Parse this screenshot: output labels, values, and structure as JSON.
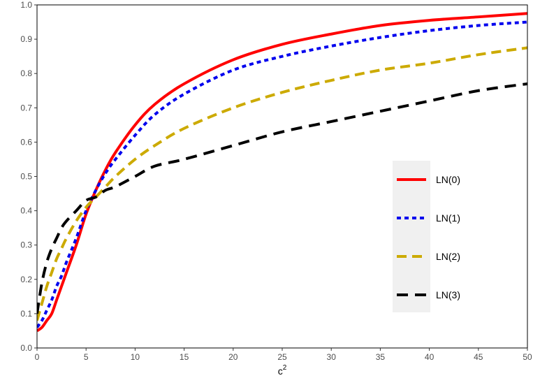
{
  "chart_data": {
    "type": "line",
    "title": "",
    "xlabel": "c",
    "xlabel_superscript": "2",
    "ylabel": "",
    "xlim": [
      0,
      50
    ],
    "ylim": [
      0,
      1
    ],
    "xticks": [
      "0",
      "5",
      "10",
      "15",
      "20",
      "25",
      "30",
      "35",
      "40",
      "45",
      "50"
    ],
    "yticks": [
      "0.0",
      "0.1",
      "0.2",
      "0.3",
      "0.4",
      "0.5",
      "0.6",
      "0.7",
      "0.8",
      "0.9",
      "1.0"
    ],
    "grid": false,
    "legend_position": "right",
    "x": [
      0,
      0.5,
      1,
      1.5,
      2,
      2.5,
      3,
      4,
      5,
      6,
      7,
      8,
      10,
      12,
      15,
      20,
      25,
      30,
      35,
      40,
      45,
      50
    ],
    "series": [
      {
        "name": "LN(0)",
        "color": "#ff0000",
        "dash": "solid",
        "values": [
          0.05,
          0.06,
          0.08,
          0.1,
          0.14,
          0.18,
          0.22,
          0.3,
          0.39,
          0.46,
          0.52,
          0.57,
          0.65,
          0.71,
          0.77,
          0.84,
          0.885,
          0.915,
          0.94,
          0.955,
          0.965,
          0.975
        ]
      },
      {
        "name": "LN(1)",
        "color": "#0000ee",
        "dash": "dotted",
        "values": [
          0.06,
          0.08,
          0.11,
          0.14,
          0.18,
          0.21,
          0.25,
          0.32,
          0.4,
          0.46,
          0.51,
          0.55,
          0.62,
          0.68,
          0.74,
          0.81,
          0.85,
          0.88,
          0.905,
          0.925,
          0.94,
          0.95
        ]
      },
      {
        "name": "LN(2)",
        "color": "#ccaa00",
        "dash": "dashed",
        "values": [
          0.08,
          0.13,
          0.18,
          0.22,
          0.26,
          0.29,
          0.32,
          0.37,
          0.41,
          0.44,
          0.47,
          0.5,
          0.55,
          0.59,
          0.64,
          0.7,
          0.745,
          0.78,
          0.81,
          0.83,
          0.855,
          0.875
        ]
      },
      {
        "name": "LN(3)",
        "color": "#000000",
        "dash": "longdash",
        "values": [
          0.1,
          0.19,
          0.25,
          0.29,
          0.32,
          0.35,
          0.37,
          0.4,
          0.43,
          0.44,
          0.46,
          0.47,
          0.5,
          0.53,
          0.55,
          0.59,
          0.63,
          0.66,
          0.69,
          0.72,
          0.75,
          0.77
        ]
      }
    ]
  }
}
